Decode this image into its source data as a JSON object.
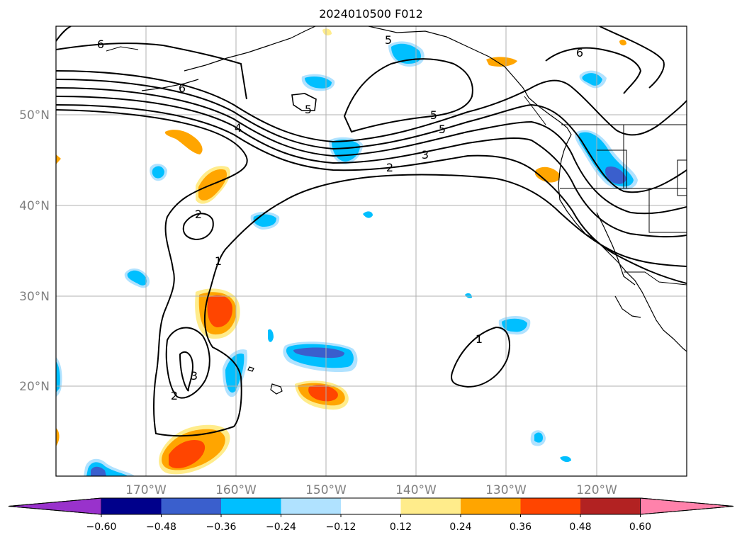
{
  "title": "2024010500 F012",
  "map": {
    "longitude_labels": [
      "170°W",
      "160°W",
      "150°W",
      "140°W",
      "130°W",
      "120°W"
    ],
    "latitude_labels": [
      "50°N",
      "40°N",
      "30°N",
      "20°N"
    ],
    "contour_labels": [
      "6",
      "6",
      "6",
      "5",
      "5",
      "5",
      "5",
      "4",
      "3",
      "2",
      "2",
      "2",
      "1",
      "1",
      "3"
    ]
  },
  "colorbar": {
    "ticks": [
      "−0.60",
      "−0.48",
      "−0.36",
      "−0.24",
      "−0.12",
      "0.12",
      "0.24",
      "0.36",
      "0.48",
      "0.60"
    ],
    "colors": [
      "#9932CC",
      "#00008B",
      "#3A5FCD",
      "#00BFFF",
      "#B0E2FF",
      "#FFFFFF",
      "#FFEC8B",
      "#FFA500",
      "#FF4500",
      "#B22222",
      "#FF82AB"
    ]
  }
}
